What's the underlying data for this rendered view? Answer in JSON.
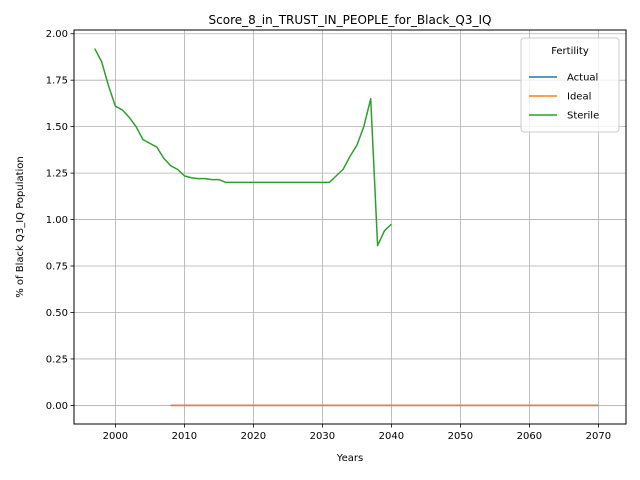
{
  "chart_data": {
    "type": "line",
    "title": "Score_8_in_TRUST_IN_PEOPLE_for_Black_Q3_IQ",
    "xlabel": "Years",
    "ylabel": "% of Black Q3_IQ Population",
    "xlim": [
      1994,
      2074
    ],
    "ylim": [
      -0.1,
      2.02
    ],
    "xticks": [
      2000,
      2010,
      2020,
      2030,
      2040,
      2050,
      2060,
      2070
    ],
    "yticks": [
      0.0,
      0.25,
      0.5,
      0.75,
      1.0,
      1.25,
      1.5,
      1.75,
      2.0
    ],
    "grid": true,
    "legend": {
      "title": "Fertility",
      "position": "top-right"
    },
    "series": [
      {
        "name": "Actual",
        "color": "#1f77b4",
        "x": [
          2008,
          2010,
          2015,
          2020,
          2025,
          2030,
          2035,
          2040,
          2045,
          2050,
          2055,
          2060,
          2065,
          2070
        ],
        "y": [
          0,
          0,
          0,
          0,
          0,
          0,
          0,
          0,
          0,
          0,
          0,
          0,
          0,
          0
        ]
      },
      {
        "name": "Ideal",
        "color": "#ff7f0e",
        "x": [
          2008,
          2010,
          2015,
          2020,
          2025,
          2030,
          2035,
          2040,
          2045,
          2050,
          2055,
          2060,
          2065,
          2070
        ],
        "y": [
          0,
          0,
          0,
          0,
          0,
          0,
          0,
          0,
          0,
          0,
          0,
          0,
          0,
          0
        ]
      },
      {
        "name": "Sterile",
        "color": "#2ca02c",
        "x": [
          1997,
          1998,
          1999,
          2000,
          2001,
          2002,
          2003,
          2004,
          2005,
          2006,
          2007,
          2008,
          2009,
          2010,
          2011,
          2012,
          2013,
          2014,
          2015,
          2016,
          2017,
          2018,
          2019,
          2020,
          2021,
          2022,
          2023,
          2024,
          2025,
          2026,
          2027,
          2028,
          2029,
          2030,
          2031,
          2032,
          2033,
          2034,
          2035,
          2036,
          2037,
          2038,
          2039,
          2040
        ],
        "y": [
          1.92,
          1.85,
          1.72,
          1.61,
          1.59,
          1.55,
          1.5,
          1.43,
          1.41,
          1.39,
          1.33,
          1.29,
          1.27,
          1.235,
          1.225,
          1.22,
          1.22,
          1.215,
          1.215,
          1.2,
          1.2,
          1.2,
          1.2,
          1.2,
          1.2,
          1.2,
          1.2,
          1.2,
          1.2,
          1.2,
          1.2,
          1.2,
          1.2,
          1.2,
          1.2,
          1.235,
          1.27,
          1.34,
          1.4,
          1.5,
          1.65,
          0.86,
          0.94,
          0.975
        ]
      }
    ]
  }
}
